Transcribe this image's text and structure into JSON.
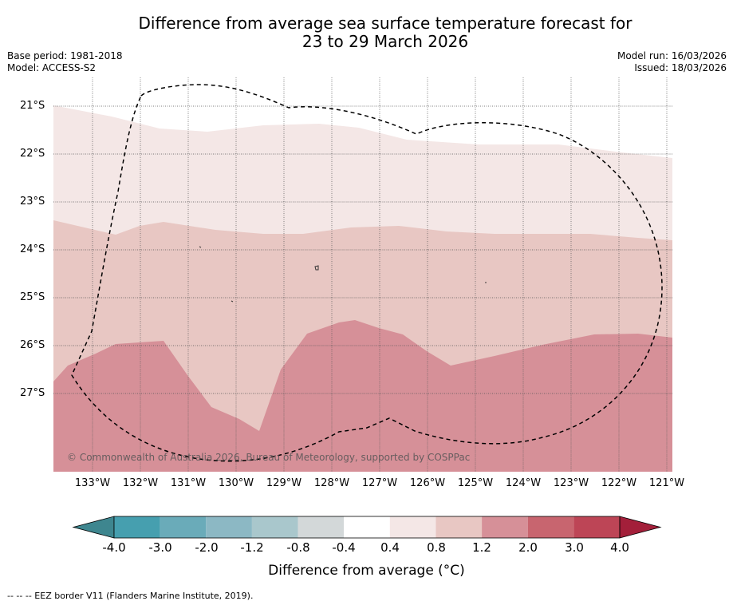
{
  "title_line1": "Difference from average sea surface temperature forecast for",
  "title_line2": "23 to 29 March 2026",
  "base_period": "Base period: 1981-2018",
  "model": "Model: ACCESS-S2",
  "model_run": "Model run: 16/03/2026",
  "issued": "Issued: 18/03/2026",
  "copyright": "© Commonwealth of Australia 2026, Bureau of Meteorology, supported by COSPPac",
  "lat_labels": [
    "21°S",
    "22°S",
    "23°S",
    "24°S",
    "25°S",
    "26°S",
    "27°S"
  ],
  "lon_labels": [
    "133°W",
    "132°W",
    "131°W",
    "130°W",
    "129°W",
    "128°W",
    "127°W",
    "126°W",
    "125°W",
    "124°W",
    "123°W",
    "122°W",
    "121°W"
  ],
  "colorbar": {
    "labels": [
      "-4.0",
      "-3.0",
      "-2.0",
      "-1.2",
      "-0.8",
      "-0.4",
      "0.4",
      "0.8",
      "1.2",
      "2.0",
      "3.0",
      "4.0"
    ],
    "colors": [
      "#469faf",
      "#6aabb9",
      "#8cb8c4",
      "#a9c7cc",
      "#d3d8d9",
      "#ffffff",
      "#f4e7e6",
      "#e8c7c3",
      "#d69098",
      "#c8656f",
      "#bd4556"
    ],
    "under_color": "#3e868f",
    "over_color": "#a31f3a",
    "title": "Difference from average (°C)"
  },
  "legend_footnote": "--  --  -- EEZ border V11 (Flanders Marine Institute, 2019)."
}
